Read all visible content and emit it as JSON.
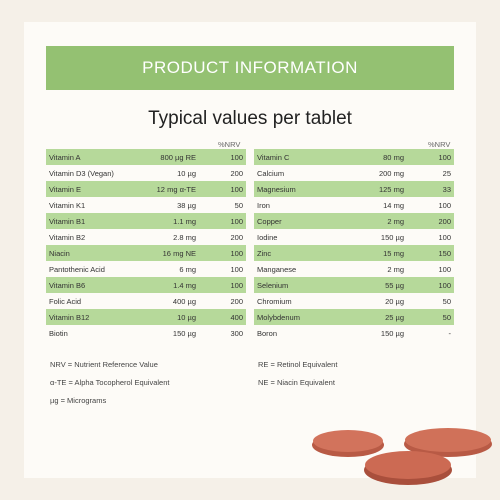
{
  "banner_title": "PRODUCT INFORMATION",
  "subtitle": "Typical values per tablet",
  "nrv_header": "%NRV",
  "left_table": [
    {
      "name": "Vitamin A",
      "amount": "800 µg RE",
      "nrv": "100"
    },
    {
      "name": "Vitamin D3 (Vegan)",
      "amount": "10 µg",
      "nrv": "200"
    },
    {
      "name": "Vitamin E",
      "amount": "12 mg α-TE",
      "nrv": "100"
    },
    {
      "name": "Vitamin K1",
      "amount": "38 µg",
      "nrv": "50"
    },
    {
      "name": "Vitamin B1",
      "amount": "1.1 mg",
      "nrv": "100"
    },
    {
      "name": "Vitamin B2",
      "amount": "2.8 mg",
      "nrv": "200"
    },
    {
      "name": "Niacin",
      "amount": "16 mg NE",
      "nrv": "100"
    },
    {
      "name": "Pantothenic Acid",
      "amount": "6 mg",
      "nrv": "100"
    },
    {
      "name": "Vitamin B6",
      "amount": "1.4 mg",
      "nrv": "100"
    },
    {
      "name": "Folic Acid",
      "amount": "400 µg",
      "nrv": "200"
    },
    {
      "name": "Vitamin B12",
      "amount": "10 µg",
      "nrv": "400"
    },
    {
      "name": "Biotin",
      "amount": "150 µg",
      "nrv": "300"
    }
  ],
  "right_table": [
    {
      "name": "Vitamin C",
      "amount": "80 mg",
      "nrv": "100"
    },
    {
      "name": "Calcium",
      "amount": "200 mg",
      "nrv": "25"
    },
    {
      "name": "Magnesium",
      "amount": "125 mg",
      "nrv": "33"
    },
    {
      "name": "Iron",
      "amount": "14 mg",
      "nrv": "100"
    },
    {
      "name": "Copper",
      "amount": "2 mg",
      "nrv": "200"
    },
    {
      "name": "Iodine",
      "amount": "150 µg",
      "nrv": "100"
    },
    {
      "name": "Zinc",
      "amount": "15 mg",
      "nrv": "150"
    },
    {
      "name": "Manganese",
      "amount": "2 mg",
      "nrv": "100"
    },
    {
      "name": "Selenium",
      "amount": "55 µg",
      "nrv": "100"
    },
    {
      "name": "Chromium",
      "amount": "20 µg",
      "nrv": "50"
    },
    {
      "name": "Molybdenum",
      "amount": "25 µg",
      "nrv": "50"
    },
    {
      "name": "Boron",
      "amount": "150 µg",
      "nrv": "-"
    }
  ],
  "notes_left": [
    "NRV = Nutrient Reference Value",
    "α-TE = Alpha Tocopherol Equivalent",
    "µg = Micrograms"
  ],
  "notes_right": [
    "RE = Retinol Equivalent",
    "NE = Niacin Equivalent"
  ],
  "colors": {
    "accent": "#94c172",
    "row_shade": "#b6d99a",
    "tablet": "#c8644e"
  }
}
